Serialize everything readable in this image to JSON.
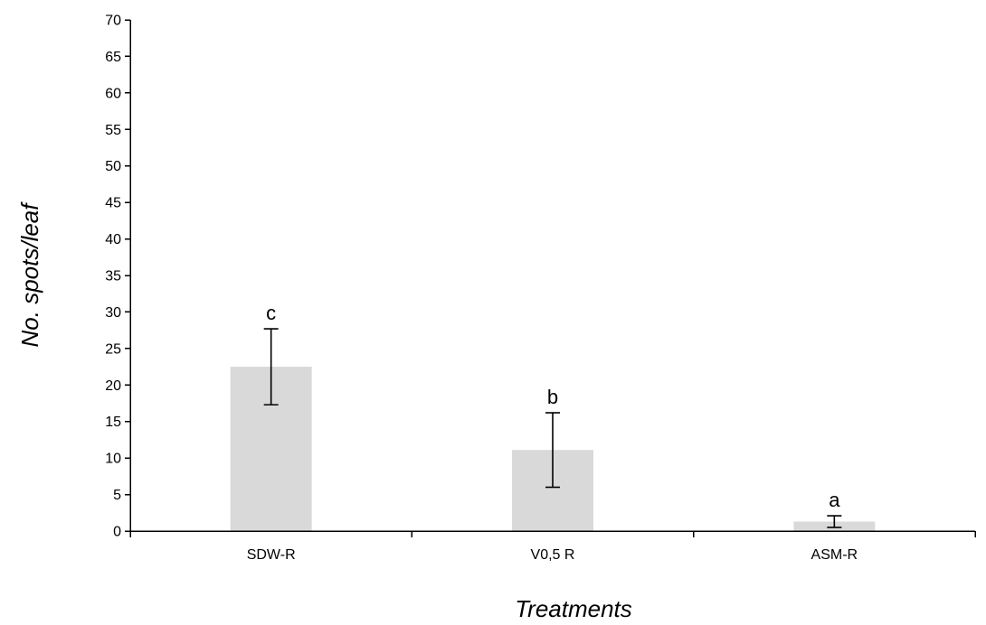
{
  "chart_data": {
    "type": "bar",
    "title": "",
    "xlabel": "Treatments",
    "ylabel": "No. spots/leaf",
    "categories": [
      "SDW-R",
      "V0,5 R",
      "ASM-R"
    ],
    "values": [
      22.5,
      11.1,
      1.3
    ],
    "error": [
      5.2,
      5.1,
      0.8
    ],
    "significance_letters": [
      "c",
      "b",
      "a"
    ],
    "ylim": [
      0,
      70
    ],
    "yticks": [
      0,
      5,
      10,
      15,
      20,
      25,
      30,
      35,
      40,
      45,
      50,
      55,
      60,
      65,
      70
    ],
    "grid": false,
    "legend": "none",
    "bar_color": "#d9d9d9",
    "axis_color": "#000000"
  }
}
